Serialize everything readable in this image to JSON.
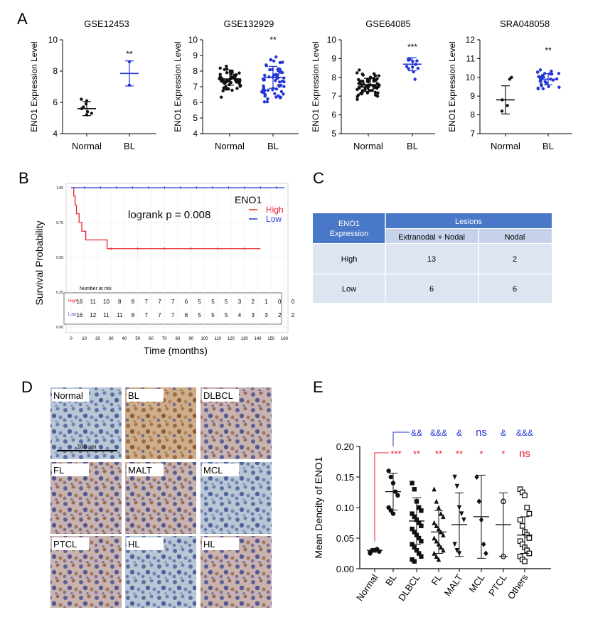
{
  "panel_labels": {
    "a": "A",
    "b": "B",
    "c": "C",
    "d": "D",
    "e": "E"
  },
  "colors": {
    "blue": "#2436d8",
    "red": "#e8202a",
    "black": "#111111",
    "table_header": "#4a78c8",
    "table_sub": "#c6d2ea",
    "table_row": "#dde4f2"
  },
  "chart_data": [
    {
      "id": "gse12453",
      "type": "scatter",
      "title": "GSE12453",
      "ylabel": "ENO1 Expression Level",
      "categories": [
        "Normal",
        "BL"
      ],
      "ylim": [
        4,
        10
      ],
      "yticks": [
        4,
        6,
        8,
        10
      ],
      "series": [
        {
          "name": "Normal",
          "mean": 5.6,
          "sd": 0.45,
          "values": [
            5.2,
            5.4,
            5.6,
            5.7,
            5.9,
            6.1,
            6.2,
            5.3
          ]
        },
        {
          "name": "BL",
          "mean": 7.85,
          "sd": 0.8,
          "values": [
            8.6,
            7.1
          ]
        }
      ],
      "significance": "**"
    },
    {
      "id": "gse132929",
      "type": "scatter",
      "title": "GSE132929",
      "ylabel": "ENO1 Expression Level",
      "categories": [
        "Normal",
        "BL"
      ],
      "ylim": [
        4,
        10
      ],
      "yticks": [
        4,
        5,
        6,
        7,
        8,
        9,
        10
      ],
      "series": [
        {
          "name": "Normal",
          "mean": 7.5,
          "sd": 0.4,
          "n": 60
        },
        {
          "name": "BL",
          "mean": 7.6,
          "sd": 0.7,
          "n": 60
        }
      ],
      "significance": "**"
    },
    {
      "id": "gse64085",
      "type": "scatter",
      "title": "GSE64085",
      "ylabel": "ENO1 Expression Level",
      "categories": [
        "Normal",
        "BL"
      ],
      "ylim": [
        5,
        10
      ],
      "yticks": [
        5,
        6,
        7,
        8,
        9,
        10
      ],
      "series": [
        {
          "name": "Normal",
          "mean": 7.6,
          "sd": 0.35,
          "n": 65
        },
        {
          "name": "BL",
          "mean": 8.7,
          "sd": 0.35,
          "n": 12
        }
      ],
      "significance": "***"
    },
    {
      "id": "sra048058",
      "type": "scatter",
      "title": "SRA048058",
      "ylabel": "ENO1 Expression Level",
      "categories": [
        "Normal",
        "BL"
      ],
      "ylim": [
        7,
        12
      ],
      "yticks": [
        7,
        8,
        9,
        10,
        11,
        12
      ],
      "series": [
        {
          "name": "Normal",
          "mean": 8.8,
          "sd": 0.75,
          "values": [
            9.9,
            10.0,
            8.8,
            8.5,
            8.2
          ]
        },
        {
          "name": "BL",
          "mean": 9.9,
          "sd": 0.3,
          "n": 28
        }
      ],
      "significance": "**"
    },
    {
      "id": "survival",
      "type": "line",
      "ylabel": "Survival Probability",
      "xlabel": "Time (months)",
      "xlim": [
        0,
        160
      ],
      "ylim": [
        0,
        1
      ],
      "xticks": [
        0,
        10,
        20,
        30,
        40,
        50,
        60,
        70,
        80,
        90,
        100,
        110,
        120,
        130,
        140,
        150,
        160
      ],
      "yticks": [
        "0.00",
        "0.25",
        "0.50",
        "0.75",
        "1.00"
      ],
      "legend_title": "ENO1",
      "annotation": "logrank p = 0.008",
      "series": [
        {
          "name": "High",
          "x": [
            0,
            2,
            3,
            4,
            6,
            8,
            11,
            27,
            142
          ],
          "y": [
            1.0,
            0.94,
            0.875,
            0.8125,
            0.75,
            0.6875,
            0.625,
            0.5625,
            0.5625
          ]
        },
        {
          "name": "Low",
          "x": [
            0,
            160
          ],
          "y": [
            1.0,
            1.0
          ]
        }
      ],
      "risk_table": {
        "title": "Number at risk",
        "rows": [
          {
            "label": "High",
            "values": [
              "16",
              "11",
              "10",
              "8",
              "8",
              "7",
              "7",
              "7",
              "6",
              "5",
              "5",
              "5",
              "3",
              "2",
              "1",
              "0",
              "0"
            ]
          },
          {
            "label": "Low",
            "values": [
              "16",
              "12",
              "11",
              "11",
              "8",
              "7",
              "7",
              "7",
              "6",
              "5",
              "5",
              "5",
              "4",
              "3",
              "3",
              "2",
              "2"
            ]
          }
        ]
      }
    },
    {
      "id": "density",
      "type": "scatter",
      "ylabel": "Mean Dencity of ENO1",
      "categories": [
        "Normal",
        "BL",
        "DLBCL",
        "FL",
        "MALT",
        "MCL",
        "PTCL",
        "Others"
      ],
      "ylim": [
        0,
        0.2
      ],
      "yticks": [
        "0.00",
        "0.05",
        "0.10",
        "0.15",
        "0.20"
      ],
      "series": [
        {
          "name": "Normal",
          "mean": 0.03,
          "sd": 0.003,
          "marker": "circle",
          "values": [
            0.025,
            0.03,
            0.03,
            0.032,
            0.028,
            0.027
          ]
        },
        {
          "name": "BL",
          "mean": 0.126,
          "sd": 0.03,
          "marker": "circle",
          "values": [
            0.16,
            0.15,
            0.14,
            0.126,
            0.12,
            0.1,
            0.095,
            0.09
          ]
        },
        {
          "name": "DLBCL",
          "mean": 0.078,
          "sd": 0.038,
          "marker": "square",
          "values": [
            0.14,
            0.13,
            0.11,
            0.1,
            0.095,
            0.09,
            0.085,
            0.08,
            0.075,
            0.07,
            0.065,
            0.06,
            0.055,
            0.05,
            0.045,
            0.04,
            0.035,
            0.03,
            0.025,
            0.02,
            0.015,
            0.012
          ]
        },
        {
          "name": "FL",
          "mean": 0.06,
          "sd": 0.035,
          "marker": "triangle",
          "values": [
            0.13,
            0.11,
            0.1,
            0.09,
            0.085,
            0.075,
            0.07,
            0.065,
            0.06,
            0.055,
            0.05,
            0.045,
            0.04,
            0.035,
            0.03,
            0.025,
            0.02,
            0.015
          ]
        },
        {
          "name": "MALT",
          "mean": 0.072,
          "sd": 0.052,
          "marker": "tri-down",
          "values": [
            0.15,
            0.135,
            0.1,
            0.09,
            0.08,
            0.04,
            0.03,
            0.025
          ]
        },
        {
          "name": "MCL",
          "mean": 0.085,
          "sd": 0.068,
          "marker": "diamond",
          "values": [
            0.15,
            0.11,
            0.08,
            0.04,
            0.025
          ]
        },
        {
          "name": "PTCL",
          "mean": 0.072,
          "sd": 0.052,
          "marker": "open-circle",
          "values": [
            0.11,
            0.02
          ]
        },
        {
          "name": "Others",
          "mean": 0.055,
          "sd": 0.03,
          "marker": "open-square",
          "values": [
            0.13,
            0.125,
            0.12,
            0.1,
            0.09,
            0.08,
            0.07,
            0.06,
            0.055,
            0.05,
            0.045,
            0.04,
            0.035,
            0.03,
            0.025,
            0.02,
            0.015,
            0.012
          ]
        }
      ],
      "sig_vs_normal": [
        "",
        "***",
        "**",
        "**",
        "**",
        "*",
        "*",
        "ns"
      ],
      "sig_vs_bl": [
        "",
        "",
        "&&",
        "&&&",
        "&",
        "ns",
        "&",
        "&&&"
      ]
    }
  ],
  "lesion_table": {
    "header_col": "ENO1 Expression",
    "header_group": "Lesions",
    "subheaders": [
      "Extranodal + Nodal",
      "Nodal"
    ],
    "rows": [
      {
        "label": "High",
        "values": [
          "13",
          "2"
        ]
      },
      {
        "label": "Low",
        "values": [
          "6",
          "6"
        ]
      }
    ]
  },
  "ihc": {
    "scale_bar": "100 μm",
    "tiles": [
      "Normal",
      "BL",
      "DLBCL",
      "FL",
      "MALT",
      "MCL",
      "PTCL",
      "HL",
      "HL"
    ],
    "tones": [
      "blue",
      "brown",
      "mixed",
      "mixed",
      "mixed",
      "blue",
      "mixed",
      "blue",
      "mixed"
    ]
  }
}
